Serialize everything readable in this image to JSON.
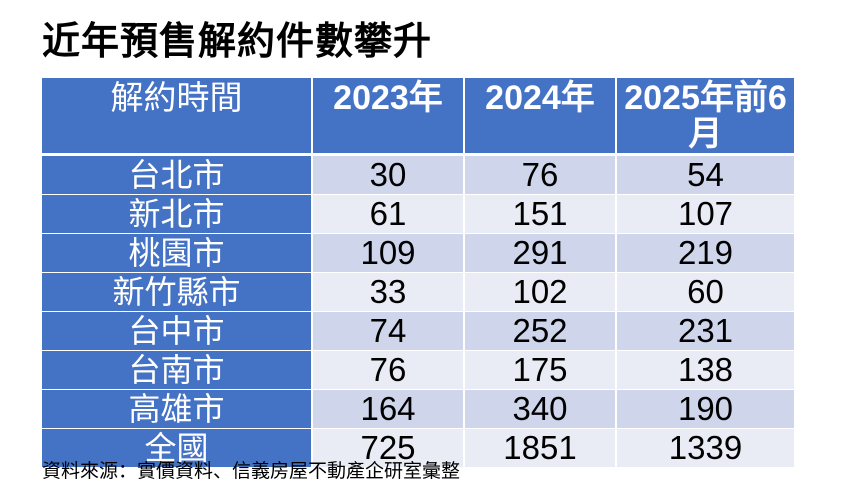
{
  "title": "近年預售解約件數攀升",
  "table": {
    "headers": [
      "解約時間",
      "2023年",
      "2024年",
      "2025年前6月"
    ],
    "rows": [
      {
        "city": "台北市",
        "values": [
          "30",
          "76",
          "54"
        ]
      },
      {
        "city": "新北市",
        "values": [
          "61",
          "151",
          "107"
        ]
      },
      {
        "city": "桃園市",
        "values": [
          "109",
          "291",
          "219"
        ]
      },
      {
        "city": "新竹縣市",
        "values": [
          "33",
          "102",
          "60"
        ]
      },
      {
        "city": "台中市",
        "values": [
          "74",
          "252",
          "231"
        ]
      },
      {
        "city": "台南市",
        "values": [
          "76",
          "175",
          "138"
        ]
      },
      {
        "city": "高雄市",
        "values": [
          "164",
          "340",
          "190"
        ]
      },
      {
        "city": "全國",
        "values": [
          "725",
          "1851",
          "1339"
        ]
      }
    ]
  },
  "source": "資料來源：實價資料、信義房屋不動產企研室彙整",
  "colors": {
    "header_bg": "#4472c4",
    "row_band_dark": "#cfd5ea",
    "row_band_light": "#e9ebf5"
  }
}
